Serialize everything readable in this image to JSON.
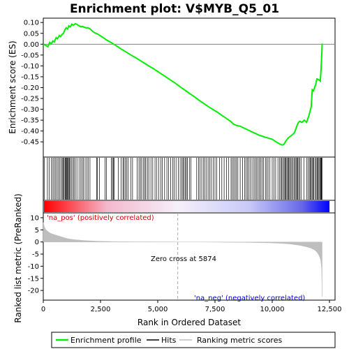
{
  "chart_data": {
    "type": "line",
    "title": "Enrichment plot: V$MYB_Q5_01",
    "top_panel": {
      "ylabel": "Enrichment score (ES)",
      "ylim": [
        -0.52,
        0.12
      ],
      "yticks": [
        0.1,
        0.05,
        0.0,
        -0.05,
        -0.1,
        -0.15,
        -0.2,
        -0.25,
        -0.3,
        -0.35,
        -0.4,
        -0.45
      ],
      "ytick_labels": [
        "0.10",
        "0.05",
        "0.00",
        "-0.05",
        "-0.10",
        "-0.15",
        "-0.20",
        "-0.25",
        "-0.30",
        "-0.35",
        "-0.40",
        "-0.45"
      ],
      "series": [
        {
          "name": "Enrichment profile",
          "color": "#00ee00",
          "x": [
            0,
            100,
            200,
            280,
            350,
            420,
            480,
            560,
            620,
            700,
            760,
            820,
            880,
            940,
            1000,
            1060,
            1120,
            1180,
            1250,
            1320,
            1400,
            1480,
            1560,
            1640,
            1720,
            1800,
            1880,
            1950,
            2050,
            2150,
            2250,
            2350,
            2450,
            2550,
            2650,
            2750,
            2900,
            3050,
            3200,
            3400,
            3600,
            3800,
            4000,
            4200,
            4400,
            4600,
            4800,
            5000,
            5200,
            5400,
            5600,
            5800,
            6000,
            6200,
            6400,
            6600,
            6800,
            7000,
            7200,
            7400,
            7600,
            7800,
            8000,
            8200,
            8300,
            8450,
            8600,
            8800,
            9000,
            9200,
            9400,
            9600,
            9800,
            10000,
            10100,
            10200,
            10300,
            10380,
            10450,
            10520,
            10600,
            10700,
            10780,
            10850,
            10950,
            11000,
            11050,
            11100,
            11150,
            11200,
            11300,
            11400,
            11450,
            11500,
            11550,
            11600,
            11650,
            11700,
            11750,
            11800,
            11850,
            11900,
            11950,
            12000,
            12050,
            12100,
            12130,
            12150,
            12170,
            12180
          ],
          "y": [
            0.0,
            -0.005,
            -0.012,
            0.008,
            0.003,
            0.015,
            0.01,
            0.03,
            0.025,
            0.04,
            0.035,
            0.045,
            0.05,
            0.065,
            0.075,
            0.07,
            0.085,
            0.08,
            0.092,
            0.088,
            0.095,
            0.09,
            0.085,
            0.08,
            0.082,
            0.078,
            0.075,
            0.076,
            0.07,
            0.06,
            0.052,
            0.048,
            0.042,
            0.035,
            0.028,
            0.02,
            0.012,
            0.002,
            -0.008,
            -0.022,
            -0.035,
            -0.048,
            -0.06,
            -0.073,
            -0.086,
            -0.1,
            -0.112,
            -0.126,
            -0.14,
            -0.154,
            -0.168,
            -0.182,
            -0.198,
            -0.213,
            -0.228,
            -0.242,
            -0.258,
            -0.272,
            -0.287,
            -0.3,
            -0.313,
            -0.328,
            -0.342,
            -0.357,
            -0.368,
            -0.375,
            -0.378,
            -0.388,
            -0.398,
            -0.408,
            -0.418,
            -0.425,
            -0.432,
            -0.438,
            -0.445,
            -0.452,
            -0.458,
            -0.462,
            -0.465,
            -0.46,
            -0.445,
            -0.432,
            -0.425,
            -0.42,
            -0.41,
            -0.4,
            -0.385,
            -0.37,
            -0.36,
            -0.355,
            -0.36,
            -0.35,
            -0.355,
            -0.36,
            -0.345,
            -0.33,
            -0.31,
            -0.29,
            -0.21,
            -0.215,
            -0.2,
            -0.185,
            -0.16,
            -0.162,
            -0.165,
            -0.17,
            -0.12,
            -0.08,
            -0.03,
            0.003
          ]
        }
      ]
    },
    "hits_panel": {
      "hit_ranks": [
        40,
        180,
        260,
        350,
        420,
        470,
        540,
        600,
        650,
        720,
        780,
        830,
        870,
        910,
        950,
        980,
        1010,
        1040,
        1070,
        1100,
        1140,
        1180,
        1230,
        1290,
        1340,
        1400,
        1470,
        1560,
        1640,
        1700,
        1760,
        1830,
        1900,
        1960,
        2040,
        2330,
        2370,
        2450,
        2700,
        2760,
        2980,
        3020,
        3060,
        3100,
        3280,
        3400,
        3480,
        3520,
        3580,
        3640,
        3700,
        3820,
        3900,
        4100,
        4180,
        4240,
        4300,
        4370,
        4430,
        4480,
        4550,
        4610,
        4700,
        4780,
        4880,
        4960,
        5050,
        5130,
        5200,
        5300,
        5400,
        5470,
        5560,
        5650,
        5720,
        5800,
        5900,
        5980,
        6050,
        6100,
        6150,
        6200,
        6250,
        6300,
        6380,
        6450,
        6700,
        6780,
        6850,
        6920,
        6990,
        7060,
        7130,
        7200,
        7270,
        7340,
        7420,
        7500,
        7580,
        7700,
        7800,
        7900,
        8000,
        8100,
        8200,
        8260,
        8320,
        8380,
        8440,
        8500,
        8600,
        8700,
        8800,
        8860,
        8920,
        8980,
        9050,
        9120,
        9200,
        9260,
        9320,
        9380,
        9440,
        9500,
        9560,
        9620,
        9700,
        9760,
        9820,
        9900,
        10000,
        10080,
        10150,
        10250,
        10320,
        10380,
        10420,
        10470,
        10520,
        10560,
        10600,
        10640,
        10680,
        10720,
        10760,
        10800,
        10850,
        10900,
        10950,
        11000,
        11040,
        11080,
        11120,
        11160,
        11200,
        11260,
        11380,
        11500,
        11560,
        11620,
        11660,
        11700,
        11740,
        11780,
        11820,
        11880,
        11920,
        11960,
        12000,
        12040,
        12080,
        12110,
        12140,
        12160,
        12175
      ]
    },
    "bottom_panel": {
      "ylabel": "Ranked list metric (PreRanked)",
      "xlabel": "Rank in Ordered Dataset",
      "xlim": [
        0,
        12500
      ],
      "xticks": [
        0,
        2500,
        5000,
        7500,
        10000,
        12500
      ],
      "xtick_labels": [
        "0",
        "2,500",
        "5,000",
        "7,500",
        "10,000",
        "12,500"
      ],
      "ylim": [
        -24,
        12
      ],
      "yticks": [
        10,
        5,
        0,
        -5,
        -10,
        -15,
        -20
      ],
      "ytick_labels": [
        "10",
        "5",
        "0",
        "-5",
        "-10",
        "-15",
        "-20"
      ],
      "metric_x": [
        0,
        50,
        100,
        200,
        300,
        400,
        500,
        700,
        900,
        1100,
        1400,
        1800,
        2300,
        3000,
        4000,
        5000,
        5874,
        7000,
        8000,
        9000,
        9800,
        10400,
        10800,
        11200,
        11500,
        11700,
        11850,
        11950,
        12050,
        12120,
        12160,
        12180
      ],
      "metric_y": [
        8.0,
        6.2,
        5.2,
        4.3,
        3.7,
        3.3,
        3.0,
        2.4,
        1.8,
        1.3,
        0.9,
        0.6,
        0.35,
        0.15,
        0.06,
        0.02,
        0.0,
        -0.05,
        -0.12,
        -0.2,
        -0.35,
        -0.55,
        -0.85,
        -1.4,
        -2.0,
        -2.6,
        -3.3,
        -4.2,
        -5.6,
        -7.5,
        -11.0,
        -22.5
      ],
      "fill_color": "#bebebe",
      "zero_cross_rank": 5874,
      "annotations": {
        "positive": "'na_pos' (positively correlated)",
        "negative": "'na_neg' (negatively correlated)",
        "zero_cross": "Zero cross at 5874"
      }
    },
    "legend": {
      "placement": "bottom",
      "entries": [
        {
          "label": "Enrichment profile",
          "color": "#00ee00",
          "style": "line"
        },
        {
          "label": "Hits",
          "color": "#000000",
          "style": "line"
        },
        {
          "label": "Ranking metric scores",
          "color": "#bebebe",
          "style": "line"
        }
      ]
    }
  }
}
